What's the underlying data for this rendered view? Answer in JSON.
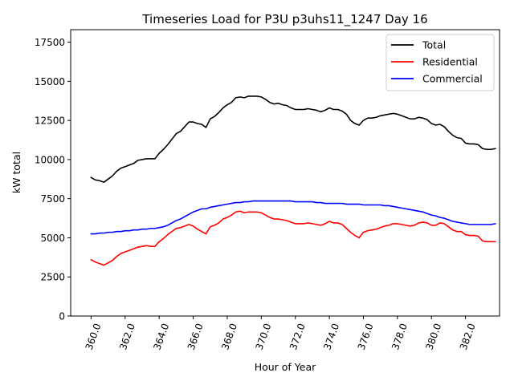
{
  "chart_data": {
    "type": "line",
    "title": "Timeseries Load for P3U p3uhs11_1247  Day 16",
    "xlabel": "Hour of Year",
    "ylabel": "kW total",
    "xlim": [
      358.8,
      384.0
    ],
    "ylim": [
      0,
      18300
    ],
    "x_ticks": [
      360,
      362,
      364,
      366,
      368,
      370,
      372,
      374,
      376,
      378,
      380,
      382
    ],
    "x_tick_labels": [
      "360.0",
      "362.0",
      "364.0",
      "366.0",
      "368.0",
      "370.0",
      "372.0",
      "374.0",
      "376.0",
      "378.0",
      "380.0",
      "382.0"
    ],
    "y_ticks": [
      0,
      2500,
      5000,
      7500,
      10000,
      12500,
      15000,
      17500
    ],
    "y_tick_labels": [
      "0",
      "2500",
      "5000",
      "7500",
      "10000",
      "12500",
      "15000",
      "17500"
    ],
    "legend_position": "top-right",
    "grid": false,
    "x": [
      360.0,
      360.25,
      360.5,
      360.75,
      361.0,
      361.25,
      361.5,
      361.75,
      362.0,
      362.25,
      362.5,
      362.75,
      363.0,
      363.25,
      363.5,
      363.75,
      364.0,
      364.25,
      364.5,
      364.75,
      365.0,
      365.25,
      365.5,
      365.75,
      366.0,
      366.25,
      366.5,
      366.75,
      367.0,
      367.25,
      367.5,
      367.75,
      368.0,
      368.25,
      368.5,
      368.75,
      369.0,
      369.25,
      369.5,
      369.75,
      370.0,
      370.25,
      370.5,
      370.75,
      371.0,
      371.25,
      371.5,
      371.75,
      372.0,
      372.25,
      372.5,
      372.75,
      373.0,
      373.25,
      373.5,
      373.75,
      374.0,
      374.25,
      374.5,
      374.75,
      375.0,
      375.25,
      375.5,
      375.75,
      376.0,
      376.25,
      376.5,
      376.75,
      377.0,
      377.25,
      377.5,
      377.75,
      378.0,
      378.25,
      378.5,
      378.75,
      379.0,
      379.25,
      379.5,
      379.75,
      380.0,
      380.25,
      380.5,
      380.75,
      381.0,
      381.25,
      381.5,
      381.75,
      382.0,
      382.25,
      382.5,
      382.75,
      383.0,
      383.25,
      383.5,
      383.75
    ],
    "series": [
      {
        "name": "Total",
        "color": "#000000",
        "values": [
          8850,
          8700,
          8650,
          8550,
          8750,
          8950,
          9250,
          9450,
          9550,
          9650,
          9750,
          9950,
          10000,
          10050,
          10050,
          10050,
          10400,
          10650,
          10950,
          11300,
          11650,
          11800,
          12100,
          12400,
          12400,
          12300,
          12250,
          12050,
          12600,
          12750,
          13000,
          13300,
          13500,
          13650,
          13950,
          14000,
          13950,
          14050,
          14050,
          14050,
          14000,
          13850,
          13650,
          13550,
          13600,
          13500,
          13450,
          13300,
          13200,
          13200,
          13200,
          13250,
          13200,
          13150,
          13050,
          13150,
          13300,
          13200,
          13200,
          13100,
          12900,
          12500,
          12300,
          12200,
          12500,
          12650,
          12650,
          12700,
          12800,
          12850,
          12900,
          12950,
          12900,
          12800,
          12700,
          12600,
          12600,
          12700,
          12650,
          12550,
          12300,
          12200,
          12250,
          12100,
          11800,
          11550,
          11400,
          11350,
          11050,
          11000,
          11000,
          10950,
          10700,
          10650,
          10650,
          10700
        ]
      },
      {
        "name": "Residential",
        "color": "#ff0000",
        "values": [
          3600,
          3450,
          3350,
          3250,
          3400,
          3550,
          3800,
          4000,
          4100,
          4200,
          4300,
          4400,
          4450,
          4500,
          4450,
          4450,
          4750,
          4950,
          5200,
          5400,
          5600,
          5650,
          5750,
          5850,
          5750,
          5550,
          5400,
          5250,
          5700,
          5800,
          5950,
          6200,
          6300,
          6450,
          6650,
          6700,
          6600,
          6650,
          6650,
          6650,
          6600,
          6450,
          6300,
          6200,
          6200,
          6150,
          6100,
          6000,
          5900,
          5900,
          5900,
          5950,
          5900,
          5850,
          5800,
          5900,
          6050,
          5950,
          5950,
          5850,
          5600,
          5350,
          5150,
          5000,
          5350,
          5450,
          5500,
          5550,
          5650,
          5750,
          5800,
          5900,
          5900,
          5850,
          5800,
          5750,
          5800,
          5950,
          6000,
          5950,
          5800,
          5800,
          5950,
          5900,
          5700,
          5500,
          5400,
          5400,
          5200,
          5150,
          5150,
          5100,
          4800,
          4750,
          4750,
          4750
        ]
      },
      {
        "name": "Commercial",
        "color": "#0000ff",
        "values": [
          5250,
          5250,
          5300,
          5300,
          5350,
          5350,
          5400,
          5400,
          5450,
          5450,
          5500,
          5500,
          5550,
          5550,
          5600,
          5600,
          5650,
          5700,
          5800,
          5950,
          6100,
          6200,
          6350,
          6500,
          6650,
          6750,
          6850,
          6850,
          6950,
          7000,
          7050,
          7100,
          7150,
          7200,
          7250,
          7250,
          7300,
          7300,
          7350,
          7350,
          7350,
          7350,
          7350,
          7350,
          7350,
          7350,
          7350,
          7350,
          7300,
          7300,
          7300,
          7300,
          7300,
          7250,
          7250,
          7200,
          7200,
          7200,
          7200,
          7200,
          7150,
          7150,
          7150,
          7150,
          7100,
          7100,
          7100,
          7100,
          7100,
          7050,
          7050,
          7000,
          6950,
          6900,
          6850,
          6800,
          6750,
          6700,
          6650,
          6550,
          6450,
          6400,
          6300,
          6250,
          6150,
          6050,
          6000,
          5950,
          5900,
          5850,
          5850,
          5850,
          5850,
          5850,
          5850,
          5900
        ]
      }
    ]
  }
}
